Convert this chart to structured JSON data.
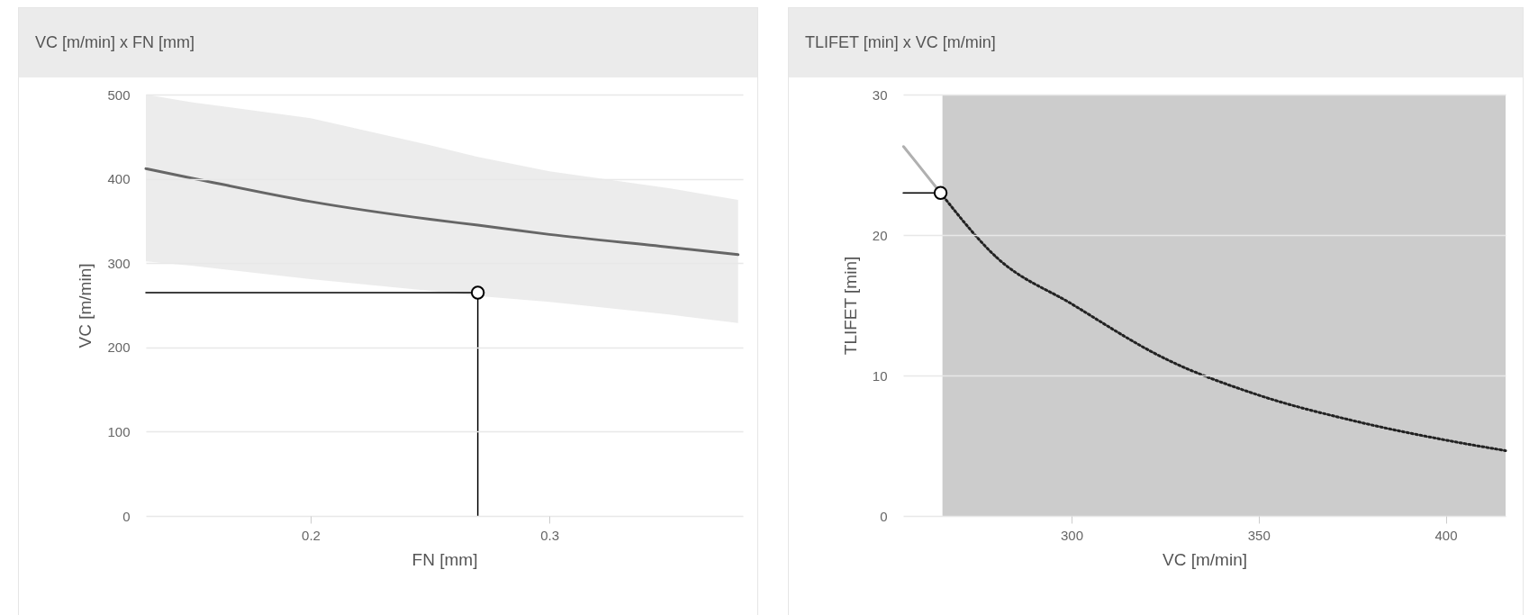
{
  "chart_data": [
    {
      "type": "line",
      "title": "VC [m/min] x FN [mm]",
      "xlabel": "FN [mm]",
      "ylabel": "VC [m/min]",
      "xlim": [
        0.131,
        0.381
      ],
      "ylim": [
        0,
        500
      ],
      "xticks": [
        0.2,
        0.3
      ],
      "yticks": [
        0,
        100,
        200,
        300,
        400,
        500
      ],
      "grid": "y",
      "series": [
        {
          "type": "line",
          "color": "#666666",
          "x": [
            0.131,
            0.15,
            0.2,
            0.25,
            0.27,
            0.3,
            0.35,
            0.379
          ],
          "values": [
            412,
            401,
            373,
            352,
            345,
            334,
            319,
            310
          ],
          "lower": [
            302,
            297,
            281,
            267,
            261,
            254,
            239,
            229
          ],
          "upper": [
            500,
            491,
            472,
            440,
            426,
            409,
            389,
            375
          ]
        },
        {
          "type": "line",
          "color": "#000000",
          "line_style": "solid",
          "x": [
            0.131,
            0.27
          ],
          "values": [
            265,
            265
          ]
        },
        {
          "type": "line",
          "color": "#000000",
          "line_style": "solid",
          "x": [
            0.27,
            0.27
          ],
          "values": [
            0,
            265
          ]
        },
        {
          "type": "scatter",
          "marker": "circle",
          "color": "#ffffff",
          "x": [
            0.27
          ],
          "values": [
            265
          ]
        }
      ]
    },
    {
      "type": "line",
      "title": "TLIFET [min] x VC [m/min]",
      "xlabel": "VC [m/min]",
      "ylabel": "TLIFET [min]",
      "xlim": [
        255,
        416
      ],
      "ylim": [
        0,
        30
      ],
      "xticks": [
        300,
        350,
        400
      ],
      "yticks": [
        0,
        10,
        20,
        30
      ],
      "grid": "y",
      "bands": [
        {
          "axis": "x",
          "from": 265.5,
          "to": 416,
          "color": "#cccccc"
        }
      ],
      "series": [
        {
          "type": "line",
          "color": "#b0b0b0",
          "line_style": "solid",
          "x": [
            255.1,
            265
          ],
          "values": [
            26.3,
            23
          ]
        },
        {
          "type": "line",
          "color": "#222222",
          "line_style": "dotted",
          "x": [
            265,
            280,
            300,
            325,
            350,
            375,
            400,
            416
          ],
          "values": [
            23,
            18.4,
            15.1,
            11.2,
            8.6,
            6.8,
            5.4,
            4.65
          ]
        },
        {
          "type": "line",
          "color": "#000000",
          "line_style": "solid",
          "x": [
            255,
            265
          ],
          "values": [
            23,
            23
          ]
        },
        {
          "type": "scatter",
          "marker": "circle",
          "color": "#ffffff",
          "x": [
            265
          ],
          "values": [
            23
          ]
        }
      ]
    }
  ]
}
